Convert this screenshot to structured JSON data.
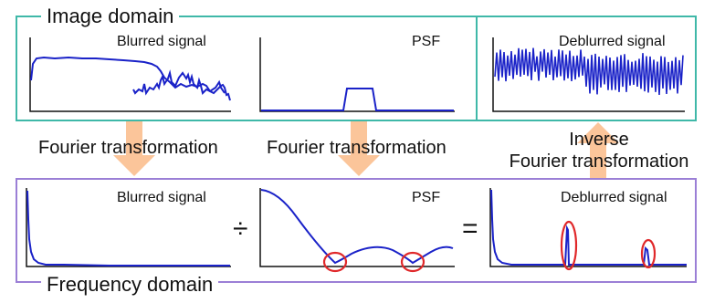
{
  "colors": {
    "image_domain_border": "#3fb8a8",
    "frequency_domain_border": "#9b7fd6",
    "signal": "#1a22c8",
    "axis": "#111111",
    "arrow": "#fbc59a",
    "highlight": "#e0282a"
  },
  "image_domain": {
    "title": "Image domain",
    "plots": {
      "blurred": {
        "label": "Blurred signal"
      },
      "psf": {
        "label": "PSF"
      },
      "deblurred": {
        "label": "Deblurred signal"
      }
    }
  },
  "frequency_domain": {
    "title": "Frequency domain",
    "plots": {
      "blurred": {
        "label": "Blurred signal"
      },
      "psf": {
        "label": "PSF"
      },
      "deblurred": {
        "label": "Deblurred signal"
      }
    },
    "operators": {
      "divide": "÷",
      "equals": "="
    }
  },
  "transitions": {
    "left": "Fourier transformation",
    "middle": "Fourier transformation",
    "right_line1": "Inverse",
    "right_line2": "Fourier transformation"
  }
}
